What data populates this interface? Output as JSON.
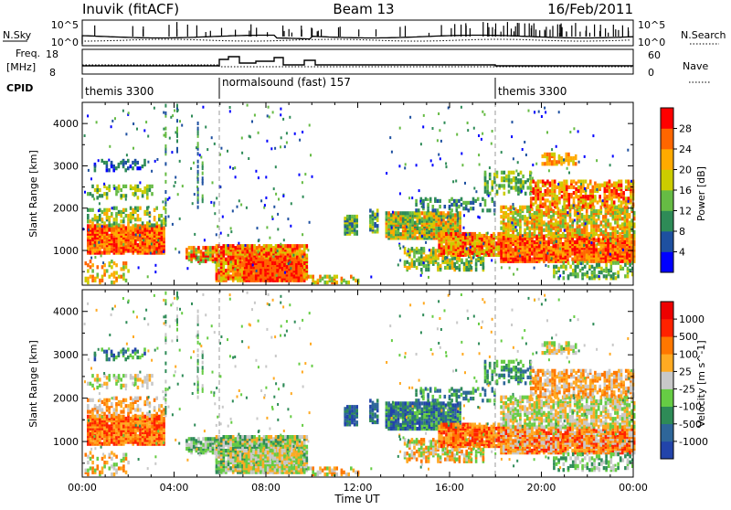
{
  "header": {
    "station": "Inuvik (fitACF)",
    "beam": "Beam 13",
    "date": "16/Feb/2011"
  },
  "nsky_panel": {
    "left_label": "N.Sky",
    "tick_top": "10^5",
    "tick_bottom": "10^0",
    "right_label": "N.Search",
    "right_tick_top": "10^5",
    "right_tick_bottom": "10^0"
  },
  "freq_panel": {
    "left_label_1": "Freq.",
    "left_label_2": "[MHz]",
    "tick_top": "18",
    "tick_bottom": "8",
    "right_label": "Nave",
    "right_tick_top": "60",
    "right_tick_bottom": "0"
  },
  "cpid_panel": {
    "left_label": "CPID",
    "segments": [
      {
        "label": "themis 3300",
        "start_h": 0,
        "end_h": 6
      },
      {
        "label": "normalsound (fast) 157",
        "start_h": 6,
        "end_h": 18
      },
      {
        "label": "themis 3300",
        "start_h": 18,
        "end_h": 24
      }
    ]
  },
  "chart_data": [
    {
      "type": "heatmap",
      "name": "power",
      "ylabel": "Slant Range [km]",
      "xlabel": "",
      "x_ticks": [
        "00:00",
        "04:00",
        "08:00",
        "12:00",
        "16:00",
        "20:00",
        "00:00"
      ],
      "xlim_hours": [
        0,
        24
      ],
      "y_ticks": [
        1000,
        2000,
        3000,
        4000
      ],
      "ylim": [
        180,
        4500
      ],
      "colorbar": {
        "label": "Power [dB]",
        "ticks": [
          "4",
          "8",
          "12",
          "16",
          "20",
          "24",
          "28"
        ],
        "colors": [
          "#0000ff",
          "#1e50a0",
          "#2e8b57",
          "#66bb44",
          "#cccc00",
          "#ffaa00",
          "#ff6600",
          "#ff0000"
        ]
      }
    },
    {
      "type": "heatmap",
      "name": "velocity",
      "ylabel": "Slant Range [km]",
      "xlabel": "Time UT",
      "x_ticks": [
        "00:00",
        "04:00",
        "08:00",
        "12:00",
        "16:00",
        "20:00",
        "00:00"
      ],
      "xlim_hours": [
        0,
        24
      ],
      "y_ticks": [
        1000,
        2000,
        3000,
        4000
      ],
      "ylim": [
        180,
        4500
      ],
      "colorbar": {
        "label": "Velocity [m s^-1]",
        "ticks": [
          "1000",
          "500",
          "100",
          "25",
          "-25",
          "-100",
          "-500",
          "-1000"
        ],
        "colors": [
          "#2244aa",
          "#2e6699",
          "#2e8b57",
          "#66cc44",
          "#c8c8c8",
          "#ffaa22",
          "#ff7700",
          "#ff2200",
          "#ee0000"
        ]
      }
    }
  ]
}
